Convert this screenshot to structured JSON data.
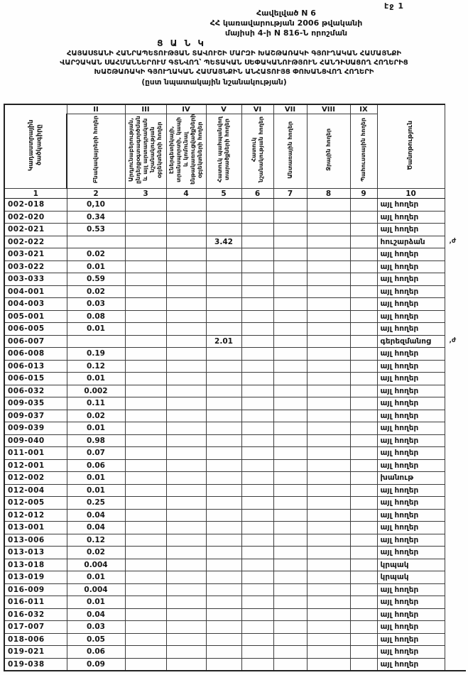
{
  "colors": {
    "text": "#161616",
    "border": "#3c3c3c",
    "background": "#fefefe"
  },
  "page": {
    "number_label": "էջ 1"
  },
  "header": {
    "appendix_lines": [
      "Հավելված N 6",
      "ՀՀ կառավարության 2006 թվականի",
      "մայիսի 4-ի N 816-Ն որոշման"
    ],
    "list_title": "Ց Ա Ն Կ",
    "subtitle_lines": [
      "ՀԱՅԱՍՏԱՆԻ ՀԱՆՐԱՊԵՏՈՒԹՅԱՆ ՏԱՎՈՒՇԻ ՄԱՐԶԻ ԽԱՇԹԱՌԱԿԻ ԳՅՈՒՂԱԿԱՆ ՀԱՄԱՅՆՔԻ",
      "ՎԱՐՉԱԿԱՆ ՍԱՀՄԱՆՆԵՐՈՒՄ ԳՏՆՎՈՂ՝ ՊԵՏԱԿԱՆ ՍԵՓԱԿԱՆՈՒԹՅՈՒՆ ՀԱՆԴԻՍԱՑՈՂ ՀՈՂԵՐԻՑ",
      "ԽԱՇԹԱՌԱԿԻ ԳՅՈՒՂԱԿԱՆ ՀԱՄԱՅՆՔԻՆ ԱՆՀԱՏՈՒՅՑ ՓՈԽԱՆՑՎՈՂ ՀՈՂԵՐԻ"
    ],
    "subtitle_note": "(ըստ նպատակային նշանակության)"
  },
  "table": {
    "roman_numerals": [
      "II",
      "III",
      "IV",
      "V",
      "VI",
      "VII",
      "VIII",
      "IX"
    ],
    "column_headers": [
      "Կադաստրային ծածկագիրը",
      "Բնակավայրերի հողեր",
      "Արդյունաբերության, ընդերքօգտագործման և այլ արտադրական նշանակության օբյեկտների հողեր",
      "Էներգետիկայի, տրանսպորտի, կապի և կոմունալ ենթակառուցվածքների օբյեկտների հողեր",
      "Հատուկ պահպանվող տարածքների հողեր",
      "Հատուկ նշանակության հողեր",
      "Անտառային հողեր",
      "Ջրային հողեր",
      "Պահուստային հողեր",
      "Ծանոթություն"
    ],
    "column_numbers": [
      "1",
      "2",
      "3",
      "4",
      "5",
      "6",
      "7",
      "8",
      "9",
      "10"
    ],
    "rows": [
      {
        "code": "002-018",
        "c2": "0,10",
        "c5": "",
        "note": "այլ հողեր",
        "margin": ""
      },
      {
        "code": "002-020",
        "c2": "0.34",
        "c5": "",
        "note": "այլ հողեր",
        "margin": ""
      },
      {
        "code": "002-021",
        "c2": "0.53",
        "c5": "",
        "note": "այլ հողեր",
        "margin": ""
      },
      {
        "code": "002-022",
        "c2": "",
        "c5": "3.42",
        "note": "հուշարձան",
        "margin": ",ժ"
      },
      {
        "code": "003-021",
        "c2": "0.02",
        "c5": "",
        "note": "այլ հողեր",
        "margin": ""
      },
      {
        "code": "003-022",
        "c2": "0.01",
        "c5": "",
        "note": "այլ հողեր",
        "margin": ""
      },
      {
        "code": "003-033",
        "c2": "0.59",
        "c5": "",
        "note": "այլ հողեր",
        "margin": ""
      },
      {
        "code": "004-001",
        "c2": "0.02",
        "c5": "",
        "note": "այլ հողեր",
        "margin": ""
      },
      {
        "code": "004-003",
        "c2": "0.03",
        "c5": "",
        "note": "այլ հողեր",
        "margin": ""
      },
      {
        "code": "005-001",
        "c2": "0.08",
        "c5": "",
        "note": "այլ հողեր",
        "margin": ""
      },
      {
        "code": "006-005",
        "c2": "0.01",
        "c5": "",
        "note": "այլ հողեր",
        "margin": ""
      },
      {
        "code": "006-007",
        "c2": "",
        "c5": "2.01",
        "note": "գերեզմանոց",
        "margin": ",ժ"
      },
      {
        "code": "006-008",
        "c2": "0.19",
        "c5": "",
        "note": "այլ հողեր",
        "margin": ""
      },
      {
        "code": "006-013",
        "c2": "0.12",
        "c5": "",
        "note": "այլ հողեր",
        "margin": ""
      },
      {
        "code": "006-015",
        "c2": "0.01",
        "c5": "",
        "note": "այլ հողեր",
        "margin": ""
      },
      {
        "code": "006-032",
        "c2": "0.002",
        "c5": "",
        "note": "այլ հողեր",
        "margin": ""
      },
      {
        "code": "009-035",
        "c2": "0.11",
        "c5": "",
        "note": "այլ հողեր",
        "margin": ""
      },
      {
        "code": "009-037",
        "c2": "0.02",
        "c5": "",
        "note": "այլ հողեր",
        "margin": ""
      },
      {
        "code": "009-039",
        "c2": "0.01",
        "c5": "",
        "note": "այլ հողեր",
        "margin": ""
      },
      {
        "code": "009-040",
        "c2": "0.98",
        "c5": "",
        "note": "այլ հողեր",
        "margin": ""
      },
      {
        "code": "011-001",
        "c2": "0.07",
        "c5": "",
        "note": "այլ հողեր",
        "margin": ""
      },
      {
        "code": "012-001",
        "c2": "0.06",
        "c5": "",
        "note": "այլ հողեր",
        "margin": ""
      },
      {
        "code": "012-002",
        "c2": "0.01",
        "c5": "",
        "note": "խանութ",
        "margin": ""
      },
      {
        "code": "012-004",
        "c2": "0.01",
        "c5": "",
        "note": "այլ հողեր",
        "margin": ""
      },
      {
        "code": "012-005",
        "c2": "0.25",
        "c5": "",
        "note": "այլ հողեր",
        "margin": ""
      },
      {
        "code": "012-012",
        "c2": "0.04",
        "c5": "",
        "note": "այլ հողեր",
        "margin": ""
      },
      {
        "code": "013-001",
        "c2": "0.04",
        "c5": "",
        "note": "այլ հողեր",
        "margin": ""
      },
      {
        "code": "013-006",
        "c2": "0.12",
        "c5": "",
        "note": "այլ հողեր",
        "margin": ""
      },
      {
        "code": "013-013",
        "c2": "0.02",
        "c5": "",
        "note": "այլ հողեր",
        "margin": ""
      },
      {
        "code": "013-018",
        "c2": "0.004",
        "c5": "",
        "note": "կրպակ",
        "margin": ""
      },
      {
        "code": "013-019",
        "c2": "0.01",
        "c5": "",
        "note": "կրպակ",
        "margin": ""
      },
      {
        "code": "016-009",
        "c2": "0.004",
        "c5": "",
        "note": "այլ հողեր",
        "margin": ""
      },
      {
        "code": "016-011",
        "c2": "0.01",
        "c5": "",
        "note": "այլ հողեր",
        "margin": ""
      },
      {
        "code": "016-032",
        "c2": "0.04",
        "c5": "",
        "note": "այլ հողեր",
        "margin": ""
      },
      {
        "code": "017-007",
        "c2": "0.03",
        "c5": "",
        "note": "այլ հողեր",
        "margin": ""
      },
      {
        "code": "018-006",
        "c2": "0.05",
        "c5": "",
        "note": "այլ հողեր",
        "margin": ""
      },
      {
        "code": "019-021",
        "c2": "0.06",
        "c5": "",
        "note": "այլ հողեր",
        "margin": ""
      },
      {
        "code": "019-038",
        "c2": "0.09",
        "c5": "",
        "note": "այլ հողեր",
        "margin": ""
      }
    ]
  }
}
